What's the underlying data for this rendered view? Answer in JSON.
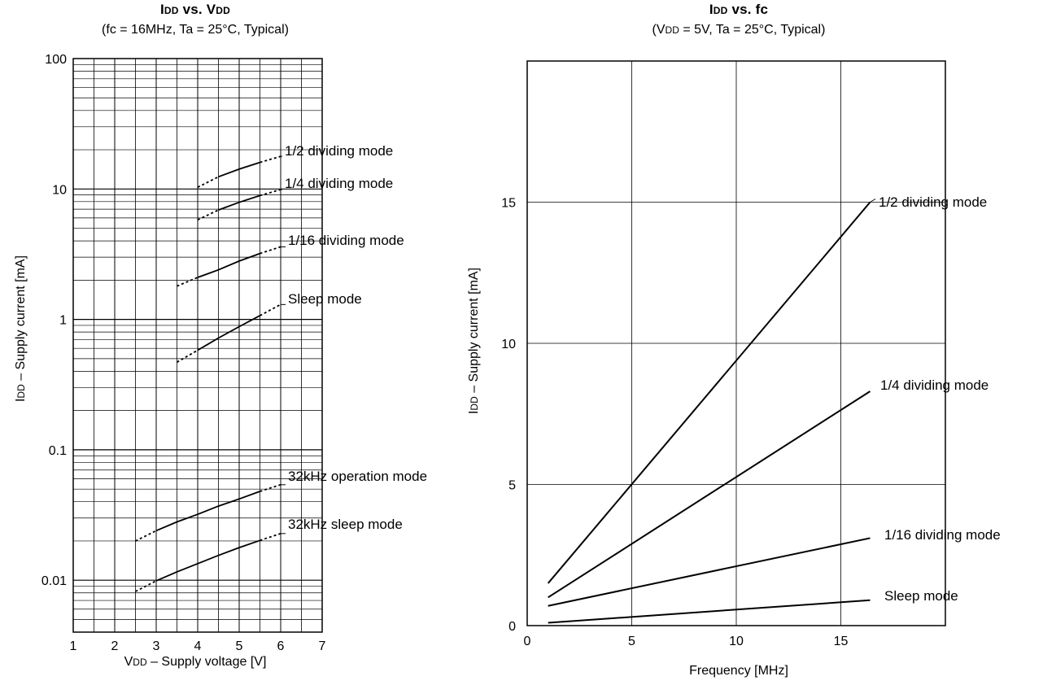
{
  "chart_data": [
    {
      "type": "line",
      "title": {
        "main": "I",
        "sub": "DD",
        "rest": " vs. V",
        "sub2": "DD"
      },
      "subtitle": "(fc = 16MHz, Ta = 25°C, Typical)",
      "xlabel": {
        "main": "V",
        "sub": "DD",
        "rest": " – Supply voltage [V]"
      },
      "ylabel": {
        "main": "I",
        "sub": "DD",
        "rest": " – Supply current [mA]"
      },
      "xlim": [
        1,
        7
      ],
      "ylim": [
        0.004,
        100
      ],
      "yscale": "log",
      "grid": true,
      "xticks": [
        "1",
        "2",
        "3",
        "4",
        "5",
        "6",
        "7"
      ],
      "yticks": [
        "100",
        "10",
        "1",
        "0.1",
        "0.01"
      ],
      "ytick_values": [
        100,
        10,
        1,
        0.1,
        0.01
      ],
      "series": [
        {
          "name": "1/2 dividing mode",
          "x": [
            4.0,
            4.5,
            5.0,
            5.5,
            6.0
          ],
          "y": [
            10.3,
            12.4,
            14.2,
            16.0,
            17.8
          ]
        },
        {
          "name": "1/4 dividing mode",
          "x": [
            4.0,
            4.5,
            5.0,
            5.5,
            6.0
          ],
          "y": [
            5.8,
            6.9,
            7.9,
            8.9,
            9.9
          ]
        },
        {
          "name": "1/16 dividing mode",
          "x": [
            3.5,
            4.0,
            4.5,
            5.0,
            5.5,
            6.0
          ],
          "y": [
            1.8,
            2.1,
            2.4,
            2.8,
            3.2,
            3.6
          ]
        },
        {
          "name": "Sleep mode",
          "x": [
            3.5,
            4.0,
            4.5,
            5.0,
            5.5,
            6.0
          ],
          "y": [
            0.47,
            0.58,
            0.72,
            0.88,
            1.07,
            1.3
          ]
        },
        {
          "name": "32kHz operation mode",
          "x": [
            2.5,
            3.0,
            3.5,
            4.0,
            4.5,
            5.0,
            5.5,
            6.0
          ],
          "y": [
            0.02,
            0.024,
            0.028,
            0.032,
            0.037,
            0.042,
            0.048,
            0.054
          ]
        },
        {
          "name": "32kHz sleep mode",
          "x": [
            2.5,
            3.0,
            3.5,
            4.0,
            4.5,
            5.0,
            5.5,
            6.0
          ],
          "y": [
            0.0082,
            0.0099,
            0.0116,
            0.0134,
            0.0155,
            0.0178,
            0.0202,
            0.0228
          ]
        }
      ]
    },
    {
      "type": "line",
      "title": {
        "main": "I",
        "sub": "DD",
        "rest": " vs.  fc"
      },
      "subtitle": {
        "pre": "(V",
        "sub": "DD",
        "rest": " = 5V,  Ta = 25°C, Typical)"
      },
      "xlabel": "Frequency [MHz]",
      "ylabel": {
        "main": "I",
        "sub": "DD",
        "rest": " – Supply current [mA]"
      },
      "xlim": [
        0,
        20
      ],
      "ylim": [
        0,
        20
      ],
      "grid": true,
      "xticks": [
        "0",
        "5",
        "10",
        "15"
      ],
      "xtick_values": [
        0,
        5,
        10,
        15
      ],
      "yticks": [
        "0",
        "5",
        "10",
        "15"
      ],
      "ytick_values": [
        0,
        5,
        10,
        15
      ],
      "series": [
        {
          "name": "1/2 dividing mode",
          "x": [
            1,
            16.4
          ],
          "y": [
            1.5,
            15.0
          ]
        },
        {
          "name": "1/4 dividing mode",
          "x": [
            1,
            16.4
          ],
          "y": [
            1.0,
            8.3
          ]
        },
        {
          "name": "1/16 dividing mode",
          "x": [
            1,
            16.4
          ],
          "y": [
            0.7,
            3.1
          ]
        },
        {
          "name": "Sleep mode",
          "x": [
            1,
            16.4
          ],
          "y": [
            0.1,
            0.9
          ]
        }
      ]
    }
  ]
}
